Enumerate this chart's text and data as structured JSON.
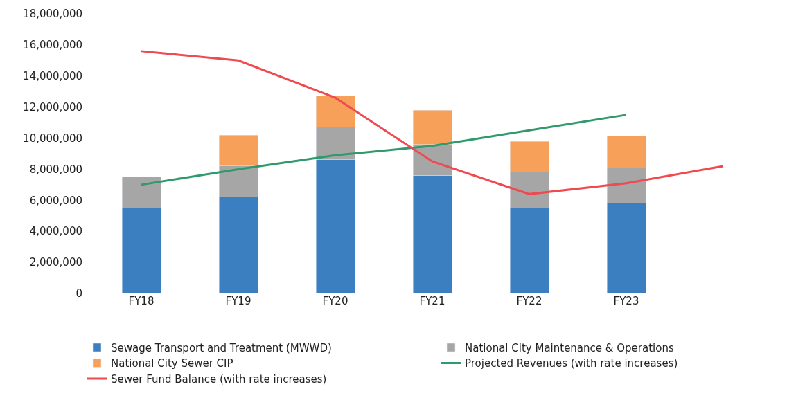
{
  "chart_data": {
    "type": "bar",
    "stacked": true,
    "categories": [
      "FY18",
      "FY19",
      "FY20",
      "FY21",
      "FY22",
      "FY23",
      null
    ],
    "series": [
      {
        "name": "Sewage Transport and Treatment (MWWD)",
        "color": "#3b7fc0",
        "values": [
          5500000,
          6200000,
          8600000,
          7600000,
          5500000,
          5800000,
          null
        ]
      },
      {
        "name": "National City Maintenance & Operations",
        "color": "#a6a6a6",
        "values": [
          2000000,
          2000000,
          2100000,
          2000000,
          2300000,
          2300000,
          null
        ]
      },
      {
        "name": "National City Sewer CIP",
        "color": "#f7a05a",
        "values": [
          null,
          2000000,
          2000000,
          2200000,
          2000000,
          2050000,
          null
        ]
      },
      {
        "name": "Projected Revenues (with rate increases)",
        "type": "line",
        "color": "#2e9a6e",
        "values": [
          7000000,
          8000000,
          8900000,
          9500000,
          10500000,
          11500000,
          null
        ]
      },
      {
        "name": "Sewer Fund Balance (with rate increases)",
        "type": "line",
        "color": "#ee4a4f",
        "values": [
          15600000,
          15000000,
          12600000,
          8500000,
          6400000,
          7100000,
          8200000
        ]
      }
    ],
    "ylim": [
      0,
      18000000
    ],
    "yticks": [
      {
        "value": 0,
        "label": "0"
      },
      {
        "value": 2000000,
        "label": "2,000,000"
      },
      {
        "value": 4000000,
        "label": "4,000,000"
      },
      {
        "value": 6000000,
        "label": "6,000,000"
      },
      {
        "value": 8000000,
        "label": "8,000,000"
      },
      {
        "value": 10000000,
        "label": "10,000,000"
      },
      {
        "value": 12000000,
        "label": "12,000,000"
      },
      {
        "value": 14000000,
        "label": "14,000,000"
      },
      {
        "value": 16000000,
        "label": "16,000,000"
      },
      {
        "value": 18000000,
        "label": "18,000,000"
      }
    ],
    "legend": "bottom",
    "marker": "none",
    "line_style": "solid"
  }
}
